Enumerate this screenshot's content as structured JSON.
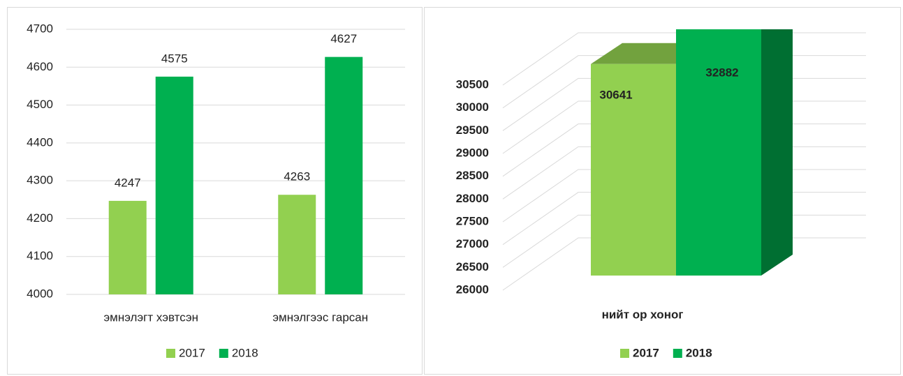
{
  "chart_data": [
    {
      "type": "bar",
      "categories": [
        "эмнэлэгт хэвтсэн",
        "эмнэлгээс гарсан"
      ],
      "series": [
        {
          "name": "2017",
          "color": "#92d050",
          "values": [
            4247,
            4263
          ]
        },
        {
          "name": "2018",
          "color": "#00b050",
          "values": [
            4575,
            4627
          ]
        }
      ],
      "ylim": [
        4000,
        4700
      ],
      "yticks": [
        4000,
        4100,
        4200,
        4300,
        4400,
        4500,
        4600,
        4700
      ],
      "grid": true,
      "legend": "bottom"
    },
    {
      "type": "bar3d",
      "categories": [
        "нийт ор хоног"
      ],
      "series": [
        {
          "name": "2017",
          "color": "#92d050",
          "values": [
            30641
          ]
        },
        {
          "name": "2018",
          "color": "#00b050",
          "values": [
            32882
          ]
        }
      ],
      "ylim": [
        26000,
        30500
      ],
      "yticks": [
        26000,
        26500,
        27000,
        27500,
        28000,
        28500,
        29000,
        29500,
        30000,
        30500
      ],
      "grid": true,
      "legend": "bottom"
    }
  ]
}
